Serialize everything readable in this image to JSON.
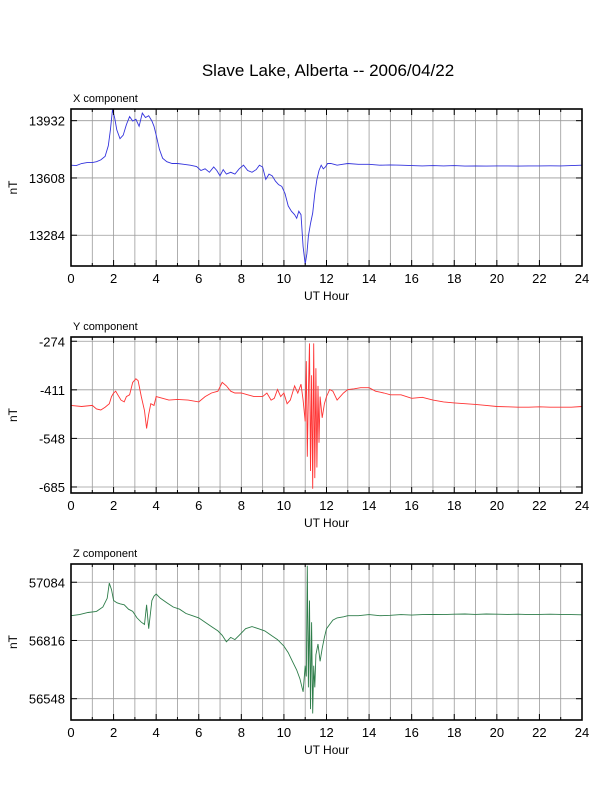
{
  "figure": {
    "title": "Slave Lake, Alberta -- 2006/04/22"
  },
  "chart_data": [
    {
      "type": "line",
      "title": "X component",
      "xlabel": "UT Hour",
      "ylabel": "nT",
      "xlim": [
        0,
        24
      ],
      "ylim": [
        13110,
        13998
      ],
      "xticks": [
        0,
        2,
        4,
        6,
        8,
        10,
        12,
        14,
        16,
        18,
        20,
        22,
        24
      ],
      "yticks": [
        13284,
        13608,
        13932
      ],
      "grid": true,
      "color": "#3333dd",
      "series": [
        {
          "x": [
            0,
            0.25,
            0.5,
            0.75,
            1,
            1.2,
            1.4,
            1.6,
            1.75,
            1.85,
            1.95,
            2.05,
            2.15,
            2.3,
            2.45,
            2.6,
            2.75,
            2.9,
            3.05,
            3.2,
            3.35,
            3.5,
            3.65,
            3.8,
            3.9,
            4,
            4.15,
            4.3,
            4.5,
            4.75,
            5,
            5.3,
            5.6,
            5.9,
            6.1,
            6.3,
            6.5,
            6.7,
            6.85,
            7,
            7.15,
            7.3,
            7.5,
            7.7,
            7.9,
            8.1,
            8.3,
            8.5,
            8.7,
            8.85,
            9,
            9.15,
            9.3,
            9.45,
            9.6,
            9.75,
            9.9,
            10.05,
            10.2,
            10.35,
            10.5,
            10.6,
            10.7,
            10.8,
            10.9,
            11,
            11.08,
            11.15,
            11.25,
            11.35,
            11.45,
            11.55,
            11.65,
            11.75,
            11.85,
            11.95,
            12.05,
            12.2,
            12.35,
            12.5,
            12.75,
            13,
            13.5,
            14,
            14.5,
            15,
            15.5,
            16,
            16.5,
            17,
            17.5,
            18,
            18.5,
            19,
            19.5,
            20,
            20.5,
            21,
            21.5,
            22,
            22.5,
            23,
            23.5,
            24
          ],
          "y": [
            13680,
            13678,
            13690,
            13695,
            13695,
            13700,
            13710,
            13730,
            13790,
            13880,
            13995,
            13950,
            13880,
            13830,
            13850,
            13910,
            13955,
            13930,
            13940,
            13900,
            13975,
            13950,
            13960,
            13930,
            13900,
            13850,
            13770,
            13720,
            13700,
            13690,
            13690,
            13685,
            13680,
            13672,
            13650,
            13660,
            13640,
            13670,
            13650,
            13620,
            13655,
            13630,
            13640,
            13630,
            13660,
            13680,
            13650,
            13640,
            13655,
            13680,
            13670,
            13600,
            13630,
            13620,
            13590,
            13570,
            13560,
            13520,
            13450,
            13420,
            13400,
            13380,
            13420,
            13400,
            13220,
            13120,
            13180,
            13280,
            13350,
            13410,
            13520,
            13600,
            13650,
            13680,
            13660,
            13670,
            13690,
            13690,
            13685,
            13680,
            13685,
            13690,
            13685,
            13685,
            13680,
            13682,
            13680,
            13678,
            13676,
            13678,
            13676,
            13678,
            13675,
            13676,
            13675,
            13676,
            13676,
            13675,
            13676,
            13676,
            13677,
            13676,
            13678,
            13680
          ]
        }
      ]
    },
    {
      "type": "line",
      "title": "Y component",
      "xlabel": "UT Hour",
      "ylabel": "nT",
      "xlim": [
        0,
        24
      ],
      "ylim": [
        -702,
        -262
      ],
      "xticks": [
        0,
        2,
        4,
        6,
        8,
        10,
        12,
        14,
        16,
        18,
        20,
        22,
        24
      ],
      "yticks": [
        -274,
        -411,
        -548,
        -685
      ],
      "grid": true,
      "color": "#ff3333",
      "series": [
        {
          "x": [
            0,
            0.5,
            1,
            1.2,
            1.4,
            1.6,
            1.8,
            1.9,
            2,
            2.1,
            2.2,
            2.35,
            2.5,
            2.6,
            2.75,
            2.9,
            3.05,
            3.15,
            3.3,
            3.45,
            3.55,
            3.65,
            3.75,
            3.9,
            4,
            4.3,
            4.6,
            5,
            5.5,
            6,
            6.3,
            6.6,
            6.9,
            7.1,
            7.3,
            7.5,
            7.7,
            8,
            8.3,
            8.6,
            9,
            9.2,
            9.4,
            9.55,
            9.7,
            9.85,
            10,
            10.15,
            10.3,
            10.5,
            10.65,
            10.8,
            10.9,
            11,
            11.05,
            11.1,
            11.15,
            11.2,
            11.25,
            11.3,
            11.35,
            11.4,
            11.45,
            11.5,
            11.55,
            11.6,
            11.65,
            11.7,
            11.8,
            11.9,
            12,
            12.15,
            12.3,
            12.5,
            12.8,
            13,
            13.3,
            13.6,
            14,
            14.3,
            14.7,
            15,
            15.5,
            16,
            16.5,
            17,
            17.5,
            18,
            18.5,
            19,
            19.5,
            20,
            20.5,
            21,
            21.5,
            22,
            22.5,
            23,
            23.5,
            24
          ],
          "y": [
            -455,
            -458,
            -455,
            -465,
            -468,
            -460,
            -450,
            -430,
            -420,
            -415,
            -425,
            -440,
            -445,
            -430,
            -425,
            -390,
            -380,
            -385,
            -430,
            -470,
            -520,
            -480,
            -450,
            -455,
            -430,
            -435,
            -440,
            -438,
            -440,
            -445,
            -430,
            -420,
            -415,
            -390,
            -400,
            -415,
            -420,
            -420,
            -425,
            -430,
            -430,
            -420,
            -440,
            -435,
            -410,
            -430,
            -420,
            -450,
            -440,
            -400,
            -420,
            -395,
            -440,
            -500,
            -330,
            -600,
            -420,
            -280,
            -640,
            -370,
            -690,
            -280,
            -660,
            -350,
            -630,
            -400,
            -560,
            -430,
            -490,
            -450,
            -430,
            -410,
            -415,
            -440,
            -420,
            -410,
            -408,
            -405,
            -405,
            -415,
            -420,
            -425,
            -425,
            -435,
            -432,
            -440,
            -445,
            -448,
            -450,
            -452,
            -455,
            -458,
            -459,
            -460,
            -460,
            -459,
            -460,
            -460,
            -460,
            -458
          ]
        }
      ]
    },
    {
      "type": "line",
      "title": "Z component",
      "xlabel": "UT Hour",
      "ylabel": "nT",
      "xlim": [
        0,
        24
      ],
      "ylim": [
        56450,
        57168
      ],
      "xticks": [
        0,
        2,
        4,
        6,
        8,
        10,
        12,
        14,
        16,
        18,
        20,
        22,
        24
      ],
      "yticks": [
        56548,
        56816,
        57084
      ],
      "grid": true,
      "color": "#2e7d4a",
      "series": [
        {
          "x": [
            0,
            0.4,
            0.8,
            1.2,
            1.5,
            1.7,
            1.8,
            1.9,
            2,
            2.15,
            2.3,
            2.5,
            2.7,
            2.9,
            3.1,
            3.3,
            3.45,
            3.55,
            3.65,
            3.8,
            3.9,
            4,
            4.2,
            4.5,
            4.8,
            5.1,
            5.4,
            5.7,
            6,
            6.3,
            6.6,
            6.9,
            7.1,
            7.3,
            7.5,
            7.7,
            7.9,
            8.2,
            8.5,
            8.8,
            9.1,
            9.4,
            9.7,
            10,
            10.2,
            10.4,
            10.6,
            10.75,
            10.9,
            11,
            11.05,
            11.1,
            11.15,
            11.2,
            11.25,
            11.3,
            11.35,
            11.4,
            11.45,
            11.5,
            11.6,
            11.7,
            11.8,
            11.9,
            12,
            12.15,
            12.3,
            12.5,
            12.8,
            13,
            13.5,
            14,
            14.5,
            15,
            15.5,
            16,
            16.5,
            17,
            17.5,
            18,
            18.5,
            19,
            19.5,
            20,
            20.5,
            21,
            21.5,
            22,
            22.5,
            23,
            23.5,
            24
          ],
          "y": [
            56930,
            56935,
            56945,
            56950,
            56970,
            57010,
            57080,
            57050,
            57000,
            56990,
            56985,
            56980,
            56960,
            56950,
            56920,
            56900,
            56890,
            56980,
            56870,
            57000,
            57020,
            57030,
            57010,
            56990,
            56970,
            56960,
            56940,
            56930,
            56920,
            56900,
            56880,
            56860,
            56840,
            56810,
            56830,
            56820,
            56840,
            56870,
            56880,
            56870,
            56860,
            56840,
            56820,
            56790,
            56760,
            56720,
            56680,
            56640,
            56580,
            56700,
            56650,
            57160,
            56600,
            57000,
            56500,
            56900,
            56480,
            56700,
            56600,
            56750,
            56800,
            56720,
            56780,
            56830,
            56870,
            56890,
            56910,
            56920,
            56925,
            56930,
            56930,
            56935,
            56930,
            56932,
            56935,
            56933,
            56935,
            56936,
            56935,
            56937,
            56938,
            56936,
            56938,
            56937,
            56936,
            56937,
            56935,
            56936,
            56937,
            56936,
            56935,
            56934
          ]
        }
      ]
    }
  ]
}
